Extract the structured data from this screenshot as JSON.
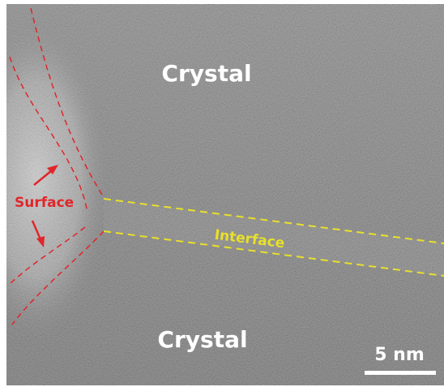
{
  "labels": {
    "top_region": "Crystal",
    "bottom_region": "Crystal",
    "surface": "Surface",
    "interface": "Interface",
    "scale_bar": "5 nm"
  }
}
